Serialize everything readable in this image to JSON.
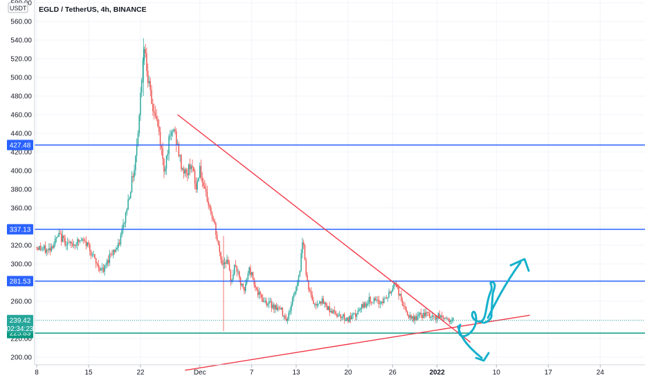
{
  "header": {
    "title": "EGLD / TetherUS, 4h, BINANCE",
    "currency_badge": "USDT"
  },
  "chart_data": {
    "type": "candlestick",
    "symbol": "EGLD / TetherUS",
    "interval": "4h",
    "exchange": "BINANCE",
    "y_unit": "USDT",
    "ylim": [
      190,
      580
    ],
    "y_ticks": [
      "580.00",
      "560.00",
      "540.00",
      "520.00",
      "500.00",
      "480.00",
      "460.00",
      "440.00",
      "420.00",
      "400.00",
      "380.00",
      "360.00",
      "340.00",
      "320.00",
      "300.00",
      "280.00",
      "260.00",
      "240.00",
      "220.00",
      "200.00"
    ],
    "x_ticks": [
      "8",
      "15",
      "22",
      "Dec",
      "7",
      "13",
      "20",
      "26",
      "2022",
      "10",
      "17",
      "24"
    ],
    "x_tick_days": [
      8,
      15,
      22,
      30,
      37,
      43,
      50,
      56,
      62,
      70,
      77,
      84
    ],
    "x_range_days": [
      8,
      90
    ],
    "x_origin": "2021-11-00",
    "x_day_unit": "day",
    "price_path": [
      [
        8.0,
        318
      ],
      [
        9.5,
        314
      ],
      [
        11.0,
        330
      ],
      [
        12.5,
        320
      ],
      [
        14.0,
        325
      ],
      [
        15.0,
        320
      ],
      [
        16.0,
        300
      ],
      [
        17.0,
        292
      ],
      [
        18.0,
        312
      ],
      [
        19.0,
        318
      ],
      [
        19.8,
        345
      ],
      [
        20.5,
        375
      ],
      [
        21.2,
        405
      ],
      [
        21.8,
        455
      ],
      [
        22.3,
        520
      ],
      [
        22.6,
        535
      ],
      [
        23.0,
        500
      ],
      [
        23.5,
        470
      ],
      [
        24.0,
        460
      ],
      [
        24.5,
        440
      ],
      [
        25.2,
        400
      ],
      [
        25.8,
        430
      ],
      [
        26.5,
        445
      ],
      [
        27.0,
        425
      ],
      [
        27.5,
        405
      ],
      [
        28.2,
        395
      ],
      [
        28.8,
        410
      ],
      [
        29.5,
        380
      ],
      [
        30.0,
        405
      ],
      [
        30.5,
        378
      ],
      [
        31.0,
        370
      ],
      [
        31.5,
        355
      ],
      [
        32.0,
        340
      ],
      [
        32.5,
        318
      ],
      [
        33.0,
        300
      ],
      [
        33.6,
        305
      ],
      [
        34.2,
        282
      ],
      [
        34.8,
        300
      ],
      [
        35.4,
        280
      ],
      [
        36.0,
        270
      ],
      [
        36.6,
        295
      ],
      [
        37.2,
        285
      ],
      [
        37.8,
        268
      ],
      [
        38.5,
        262
      ],
      [
        39.2,
        258
      ],
      [
        40.0,
        255
      ],
      [
        41.0,
        250
      ],
      [
        41.8,
        240
      ],
      [
        42.5,
        262
      ],
      [
        43.2,
        282
      ],
      [
        43.6,
        300
      ],
      [
        43.9,
        335
      ],
      [
        44.3,
        290
      ],
      [
        44.8,
        270
      ],
      [
        45.5,
        255
      ],
      [
        46.2,
        262
      ],
      [
        47.0,
        255
      ],
      [
        48.0,
        248
      ],
      [
        49.0,
        245
      ],
      [
        50.0,
        240
      ],
      [
        51.0,
        245
      ],
      [
        52.0,
        255
      ],
      [
        53.0,
        262
      ],
      [
        54.0,
        258
      ],
      [
        55.0,
        262
      ],
      [
        55.8,
        270
      ],
      [
        56.3,
        282
      ],
      [
        57.0,
        265
      ],
      [
        57.8,
        248
      ],
      [
        58.5,
        240
      ],
      [
        59.5,
        244
      ],
      [
        60.5,
        246
      ],
      [
        61.5,
        242
      ],
      [
        62.5,
        244
      ],
      [
        63.5,
        240
      ],
      [
        64.3,
        239.42
      ]
    ],
    "horizontal_levels": [
      {
        "value": 427.48,
        "label": "427.48",
        "color": "#2962ff"
      },
      {
        "value": 337.13,
        "label": "337.13",
        "color": "#2962ff"
      },
      {
        "value": 281.53,
        "label": "281.53",
        "color": "#2962ff"
      },
      {
        "value": 225.83,
        "label": "225.83",
        "color": "#089981"
      }
    ],
    "last_price": {
      "value": 239.42,
      "label": "239.42",
      "countdown": "02:34:23",
      "color": "#26a69a"
    },
    "trendlines": [
      {
        "name": "descending-resistance",
        "color": "#f23645",
        "x": [
          27.0,
          66.5
        ],
        "y": [
          460,
          216
        ]
      },
      {
        "name": "ascending-support",
        "color": "#f23645",
        "x": [
          28.0,
          74.5
        ],
        "y": [
          186,
          245
        ]
      }
    ],
    "annotation_color": "#15b0cc",
    "colors": {
      "up": "#26a69a",
      "down": "#ef5350",
      "grid": "#f0f3fa",
      "axis_text": "#131722"
    }
  }
}
